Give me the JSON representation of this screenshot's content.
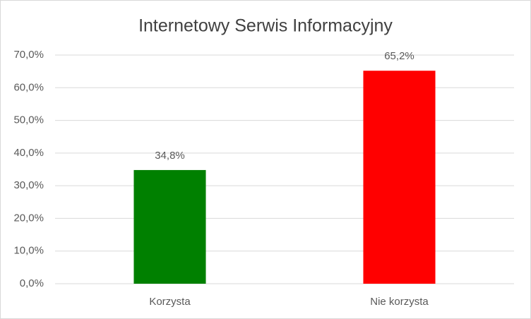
{
  "chart_data": {
    "type": "bar",
    "title": "Internetowy Serwis Informacyjny",
    "categories": [
      "Korzysta",
      "Nie korzysta"
    ],
    "values": [
      34.8,
      65.2
    ],
    "value_labels": [
      "34,8%",
      "65,2%"
    ],
    "colors": [
      "#008000",
      "#ff0000"
    ],
    "ylim": [
      0,
      70
    ],
    "yticks": [
      {
        "value": 0,
        "label": "0,0%"
      },
      {
        "value": 10,
        "label": "10,0%"
      },
      {
        "value": 20,
        "label": "20,0%"
      },
      {
        "value": 30,
        "label": "30,0%"
      },
      {
        "value": 40,
        "label": "40,0%"
      },
      {
        "value": 50,
        "label": "50,0%"
      },
      {
        "value": 60,
        "label": "60,0%"
      },
      {
        "value": 70,
        "label": "70,0%"
      }
    ],
    "grid": true
  }
}
